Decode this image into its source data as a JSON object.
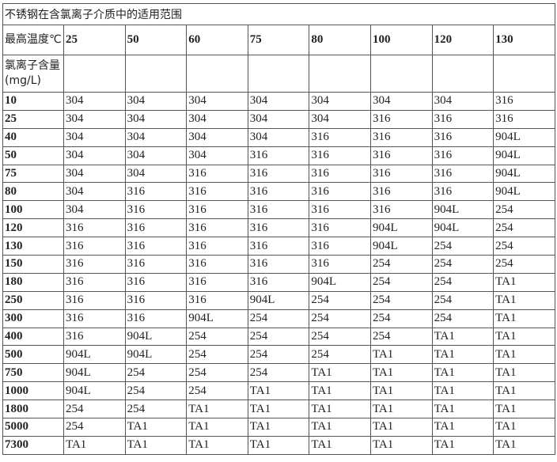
{
  "title": "不锈钢在含氯离子介质中的适用范围",
  "temp_label": "最高温度℃",
  "chloride_label": "氯离子含量(mg/L)",
  "temperatures": [
    "25",
    "50",
    "60",
    "75",
    "80",
    "100",
    "120",
    "130"
  ],
  "rows": [
    {
      "cl": "10",
      "v": [
        "304",
        "304",
        "304",
        "304",
        "304",
        "304",
        "304",
        "316"
      ]
    },
    {
      "cl": "25",
      "v": [
        "304",
        "304",
        "304",
        "304",
        "304",
        "316",
        "316",
        "316"
      ]
    },
    {
      "cl": "40",
      "v": [
        "304",
        "304",
        "304",
        "304",
        "316",
        "316",
        "316",
        "904L"
      ]
    },
    {
      "cl": "50",
      "v": [
        "304",
        "304",
        "304",
        "316",
        "316",
        "316",
        "316",
        "904L"
      ]
    },
    {
      "cl": "75",
      "v": [
        "304",
        "304",
        "316",
        "316",
        "316",
        "316",
        "316",
        "904L"
      ]
    },
    {
      "cl": "80",
      "v": [
        "304",
        "316",
        "316",
        "316",
        "316",
        "316",
        "316",
        "904L"
      ]
    },
    {
      "cl": "100",
      "v": [
        "304",
        "316",
        "316",
        "316",
        "316",
        "316",
        "904L",
        "254"
      ]
    },
    {
      "cl": "120",
      "v": [
        "316",
        "316",
        "316",
        "316",
        "316",
        "904L",
        "904L",
        "254"
      ]
    },
    {
      "cl": "130",
      "v": [
        "316",
        "316",
        "316",
        "316",
        "316",
        "904L",
        "254",
        "254"
      ]
    },
    {
      "cl": "150",
      "v": [
        "316",
        "316",
        "316",
        "316",
        "316",
        "254",
        "254",
        "254"
      ]
    },
    {
      "cl": "180",
      "v": [
        "316",
        "316",
        "316",
        "316",
        "904L",
        "254",
        "254",
        "TA1"
      ]
    },
    {
      "cl": "250",
      "v": [
        "316",
        "316",
        "316",
        "904L",
        "254",
        "254",
        "254",
        "TA1"
      ]
    },
    {
      "cl": "300",
      "v": [
        "316",
        "316",
        "904L",
        "254",
        "254",
        "254",
        "254",
        "TA1"
      ]
    },
    {
      "cl": "400",
      "v": [
        "316",
        "904L",
        "254",
        "254",
        "254",
        "254",
        "TA1",
        "TA1"
      ]
    },
    {
      "cl": "500",
      "v": [
        "904L",
        "904L",
        "254",
        "254",
        "254",
        "TA1",
        "TA1",
        "TA1"
      ]
    },
    {
      "cl": "750",
      "v": [
        "904L",
        "254",
        "254",
        "254",
        "TA1",
        "TA1",
        "TA1",
        "TA1"
      ]
    },
    {
      "cl": "1000",
      "v": [
        "904L",
        "254",
        "254",
        "TA1",
        "TA1",
        "TA1",
        "TA1",
        "TA1"
      ]
    },
    {
      "cl": "1800",
      "v": [
        "254",
        "254",
        "TA1",
        "TA1",
        "TA1",
        "TA1",
        "TA1",
        "TA1"
      ]
    },
    {
      "cl": "5000",
      "v": [
        "254",
        "TA1",
        "TA1",
        "TA1",
        "TA1",
        "TA1",
        "TA1",
        "TA1"
      ]
    },
    {
      "cl": "7300",
      "v": [
        "TA1",
        "TA1",
        "TA1",
        "TA1",
        "TA1",
        "TA1",
        "TA1",
        "TA1"
      ]
    }
  ]
}
